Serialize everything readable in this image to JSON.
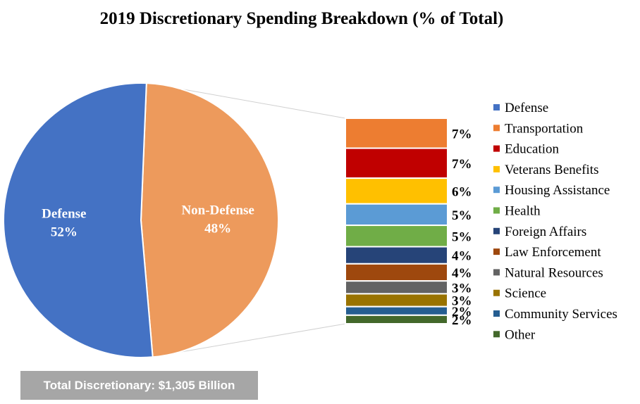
{
  "chart_data": {
    "type": "pie",
    "title": "2019 Discretionary Spending Breakdown (% of Total)",
    "pie": {
      "slices": [
        {
          "name": "Defense",
          "value": 52,
          "label_name": "Defense",
          "label_value": "52%",
          "color": "#4472c4"
        },
        {
          "name": "Non-Defense",
          "value": 48,
          "label_name": "Non-Defense",
          "label_value": "48%",
          "color": "#ed9a5c"
        }
      ]
    },
    "breakdown": {
      "type": "stacked-bar",
      "parent": "Non-Defense",
      "segments": [
        {
          "name": "Transportation",
          "value": 7,
          "label": "7%",
          "color": "#ed7d31"
        },
        {
          "name": "Education",
          "value": 7,
          "label": "7%",
          "color": "#c00000"
        },
        {
          "name": "Veterans Benefits",
          "value": 6,
          "label": "6%",
          "color": "#ffc000"
        },
        {
          "name": "Housing Assistance",
          "value": 5,
          "label": "5%",
          "color": "#5b9bd5"
        },
        {
          "name": "Health",
          "value": 5,
          "label": "5%",
          "color": "#70ad47"
        },
        {
          "name": "Foreign Affairs",
          "value": 4,
          "label": "4%",
          "color": "#264478"
        },
        {
          "name": "Law Enforcement",
          "value": 4,
          "label": "4%",
          "color": "#9e480e"
        },
        {
          "name": "Natural Resources",
          "value": 3,
          "label": "3%",
          "color": "#636363"
        },
        {
          "name": "Science",
          "value": 3,
          "label": "3%",
          "color": "#997300"
        },
        {
          "name": "Community Services",
          "value": 2,
          "label": "2%",
          "color": "#255e91"
        },
        {
          "name": "Other",
          "value": 2,
          "label": "2%",
          "color": "#43682b"
        }
      ]
    },
    "legend": {
      "position": "right",
      "items": [
        {
          "name": "Defense",
          "color": "#4472c4"
        },
        {
          "name": "Transportation",
          "color": "#ed7d31"
        },
        {
          "name": "Education",
          "color": "#c00000"
        },
        {
          "name": "Veterans Benefits",
          "color": "#ffc000"
        },
        {
          "name": "Housing Assistance",
          "color": "#5b9bd5"
        },
        {
          "name": "Health",
          "color": "#70ad47"
        },
        {
          "name": "Foreign Affairs",
          "color": "#264478"
        },
        {
          "name": "Law Enforcement",
          "color": "#9e480e"
        },
        {
          "name": "Natural Resources",
          "color": "#636363"
        },
        {
          "name": "Science",
          "color": "#997300"
        },
        {
          "name": "Community Services",
          "color": "#255e91"
        },
        {
          "name": "Other",
          "color": "#43682b"
        }
      ]
    },
    "footer": "Total Discretionary: $1,305 Billion"
  }
}
